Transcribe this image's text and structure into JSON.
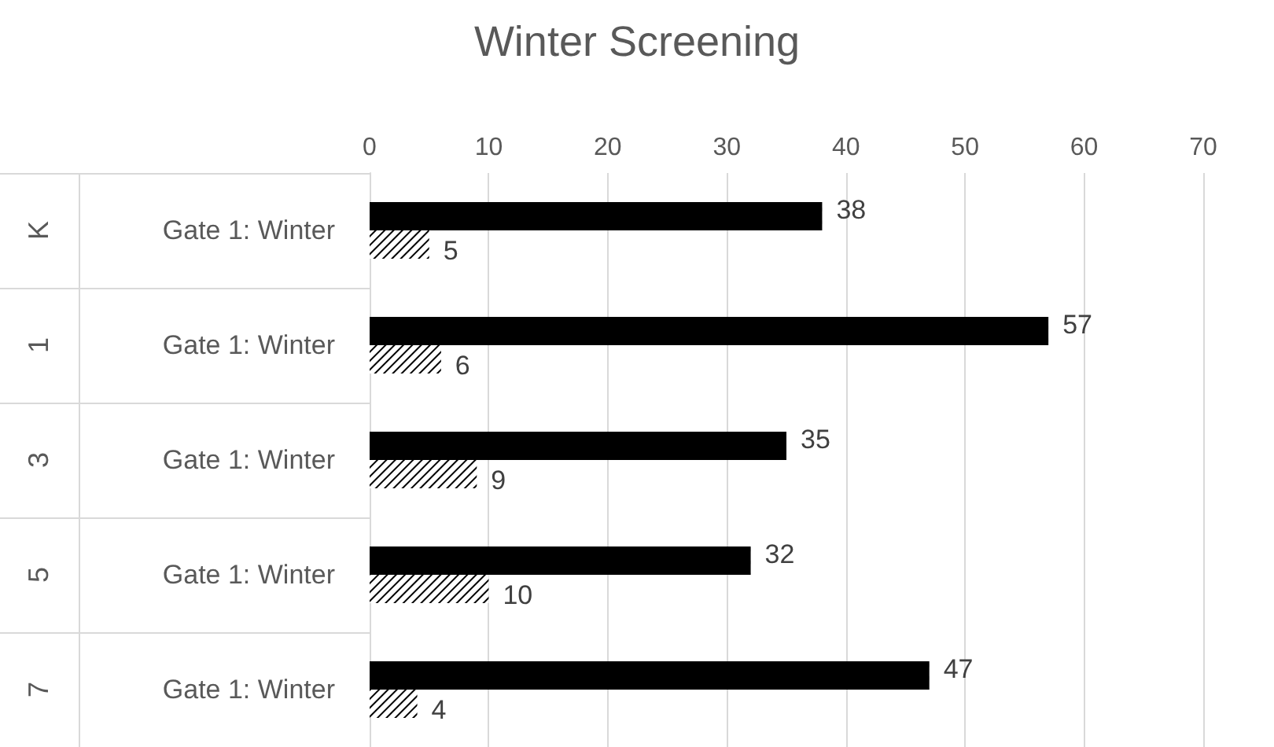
{
  "chart_data": {
    "type": "bar",
    "orientation": "horizontal",
    "title": "Winter Screening",
    "categories": [
      "Gate 1: Winter",
      "Gate 1: Winter",
      "Gate 1: Winter",
      "Gate 1: Winter",
      "Gate 1: Winter"
    ],
    "series": [
      {
        "color": "#000000",
        "values": [
          38,
          57,
          35,
          32,
          47
        ]
      },
      {
        "color": "#000000",
        "values": [
          5,
          6,
          9,
          10,
          4
        ]
      }
    ],
    "annotations": [
      "K",
      "1",
      "3",
      "5",
      "7"
    ],
    "xlim": [
      0,
      70
    ],
    "xticks": [
      0,
      10,
      20,
      30,
      40,
      50,
      60,
      70
    ],
    "grid": "x",
    "data_labels": true
  }
}
